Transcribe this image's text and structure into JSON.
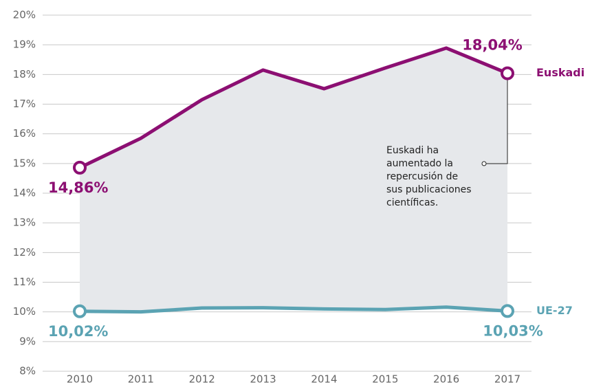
{
  "chart_data": {
    "type": "line",
    "categories": [
      "2010",
      "2011",
      "2012",
      "2013",
      "2014",
      "2015",
      "2016",
      "2017"
    ],
    "series": [
      {
        "name": "Euskadi",
        "color": "#8c0f72",
        "values": [
          14.86,
          15.85,
          17.15,
          18.15,
          17.52,
          18.22,
          18.89,
          18.04
        ],
        "value_labels": [
          "14,86%",
          null,
          null,
          null,
          null,
          null,
          null,
          "18,04%"
        ]
      },
      {
        "name": "UE-27",
        "color": "#5ba3b3",
        "values": [
          10.02,
          10.0,
          10.13,
          10.14,
          10.1,
          10.08,
          10.16,
          10.03
        ],
        "value_labels": [
          "10,02%",
          null,
          null,
          null,
          null,
          null,
          null,
          "10,03%"
        ]
      }
    ],
    "ylim": [
      8,
      20
    ],
    "yticks": [
      {
        "value": 8,
        "label": "8%"
      },
      {
        "value": 9,
        "label": "9%"
      },
      {
        "value": 10,
        "label": "10%"
      },
      {
        "value": 11,
        "label": "11%"
      },
      {
        "value": 12,
        "label": "12%"
      },
      {
        "value": 13,
        "label": "13%"
      },
      {
        "value": 14,
        "label": "14%"
      },
      {
        "value": 15,
        "label": "15%"
      },
      {
        "value": 16,
        "label": "16%"
      },
      {
        "value": 17,
        "label": "17%"
      },
      {
        "value": 18,
        "label": "18%"
      },
      {
        "value": 19,
        "label": "19%"
      },
      {
        "value": 20,
        "label": "20%"
      }
    ],
    "grid": true,
    "area_color": "#e6e8eb",
    "annotation": [
      "Euskadi ha",
      "aumentado la",
      "repercusión de",
      "sus publicaciones",
      "científicas."
    ]
  }
}
